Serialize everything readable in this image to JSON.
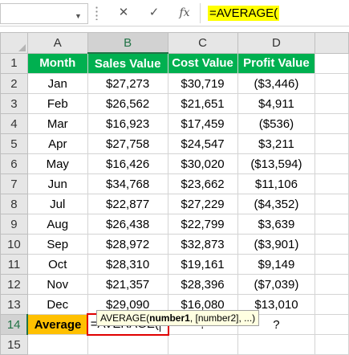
{
  "formula_bar": {
    "name_box": "",
    "cancel_glyph": "✕",
    "enter_glyph": "✓",
    "fx_glyph": "fx",
    "formula": "=AVERAGE("
  },
  "columns": [
    "A",
    "B",
    "C",
    "D"
  ],
  "rows": [
    {
      "num": "1",
      "cells": [
        "Month",
        "Sales Value",
        "Cost Value",
        "Profit Value"
      ]
    },
    {
      "num": "2",
      "cells": [
        "Jan",
        "$27,273",
        "$30,719",
        "($3,446)"
      ]
    },
    {
      "num": "3",
      "cells": [
        "Feb",
        "$26,562",
        "$21,651",
        "$4,911"
      ]
    },
    {
      "num": "4",
      "cells": [
        "Mar",
        "$16,923",
        "$17,459",
        "($536)"
      ]
    },
    {
      "num": "5",
      "cells": [
        "Apr",
        "$27,758",
        "$24,547",
        "$3,211"
      ]
    },
    {
      "num": "6",
      "cells": [
        "May",
        "$16,426",
        "$30,020",
        "($13,594)"
      ]
    },
    {
      "num": "7",
      "cells": [
        "Jun",
        "$34,768",
        "$23,662",
        "$11,106"
      ]
    },
    {
      "num": "8",
      "cells": [
        "Jul",
        "$22,877",
        "$27,229",
        "($4,352)"
      ]
    },
    {
      "num": "9",
      "cells": [
        "Aug",
        "$26,438",
        "$22,799",
        "$3,639"
      ]
    },
    {
      "num": "10",
      "cells": [
        "Sep",
        "$28,972",
        "$32,873",
        "($3,901)"
      ]
    },
    {
      "num": "11",
      "cells": [
        "Oct",
        "$28,310",
        "$19,161",
        "$9,149"
      ]
    },
    {
      "num": "12",
      "cells": [
        "Nov",
        "$21,357",
        "$28,396",
        "($7,039)"
      ]
    },
    {
      "num": "13",
      "cells": [
        "Dec",
        "$29,090",
        "$16,080",
        "$13,010"
      ]
    },
    {
      "num": "14",
      "cells": [
        "Average",
        "=AVERAGE(",
        "?",
        "?"
      ]
    }
  ],
  "extra_row_num": "15",
  "tooltip": {
    "fn": "AVERAGE(",
    "arg1": "number1",
    "rest": ", [number2], ...)"
  },
  "colors": {
    "header_green": "#00b050",
    "average_orange": "#ffc000",
    "formula_highlight": "#ffff00",
    "active_border": "#e00000"
  }
}
